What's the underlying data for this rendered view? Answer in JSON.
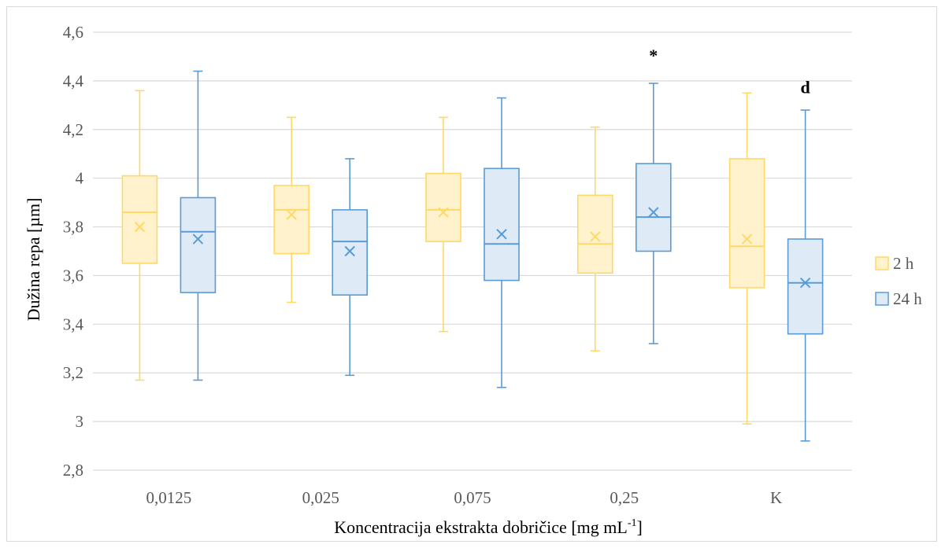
{
  "chart_data": {
    "type": "box",
    "xlabel": "Koncentracija ekstrakta dobričice [mg mL-1]",
    "xlabel_main": "Koncentracija ekstrakta dobričice [mg mL",
    "xlabel_sup": "-1",
    "xlabel_end": "]",
    "ylabel": "Dužina repa [µm]",
    "ylim": [
      2.8,
      4.6
    ],
    "yticks": [
      "2,8",
      "3",
      "3,2",
      "3,4",
      "3,6",
      "3,8",
      "4",
      "4,2",
      "4,4",
      "4,6"
    ],
    "ytick_values": [
      2.8,
      3.0,
      3.2,
      3.4,
      3.6,
      3.8,
      4.0,
      4.2,
      4.4,
      4.6
    ],
    "categories": [
      "0,0125",
      "0,025",
      "0,075",
      "0,25",
      "K"
    ],
    "grid": true,
    "legend_position": "right",
    "series": [
      {
        "name": "2 h",
        "color": "#ffd966",
        "fill": "#fff2cc",
        "boxes": [
          {
            "min": 3.17,
            "q1": 3.65,
            "median": 3.86,
            "q3": 4.01,
            "max": 4.36,
            "mean": 3.8
          },
          {
            "min": 3.49,
            "q1": 3.69,
            "median": 3.87,
            "q3": 3.97,
            "max": 4.25,
            "mean": 3.85
          },
          {
            "min": 3.37,
            "q1": 3.74,
            "median": 3.87,
            "q3": 4.02,
            "max": 4.25,
            "mean": 3.86
          },
          {
            "min": 3.29,
            "q1": 3.61,
            "median": 3.73,
            "q3": 3.93,
            "max": 4.21,
            "mean": 3.76
          },
          {
            "min": 2.99,
            "q1": 3.55,
            "median": 3.72,
            "q3": 4.08,
            "max": 4.35,
            "mean": 3.75
          }
        ]
      },
      {
        "name": "24 h",
        "color": "#5b9bd5",
        "fill": "#deebf7",
        "boxes": [
          {
            "min": 3.17,
            "q1": 3.53,
            "median": 3.78,
            "q3": 3.92,
            "max": 4.44,
            "mean": 3.75
          },
          {
            "min": 3.19,
            "q1": 3.52,
            "median": 3.74,
            "q3": 3.87,
            "max": 4.08,
            "mean": 3.7
          },
          {
            "min": 3.14,
            "q1": 3.58,
            "median": 3.73,
            "q3": 4.04,
            "max": 4.33,
            "mean": 3.77
          },
          {
            "min": 3.32,
            "q1": 3.7,
            "median": 3.84,
            "q3": 4.06,
            "max": 4.39,
            "mean": 3.86
          },
          {
            "min": 2.92,
            "q1": 3.36,
            "median": 3.57,
            "q3": 3.75,
            "max": 4.28,
            "mean": 3.57
          }
        ]
      }
    ],
    "annotations": [
      {
        "text": "*",
        "category_index": 3,
        "series_index": 1,
        "y": 4.48
      },
      {
        "text": "d",
        "category_index": 4,
        "series_index": 1,
        "y": 4.35
      }
    ]
  }
}
